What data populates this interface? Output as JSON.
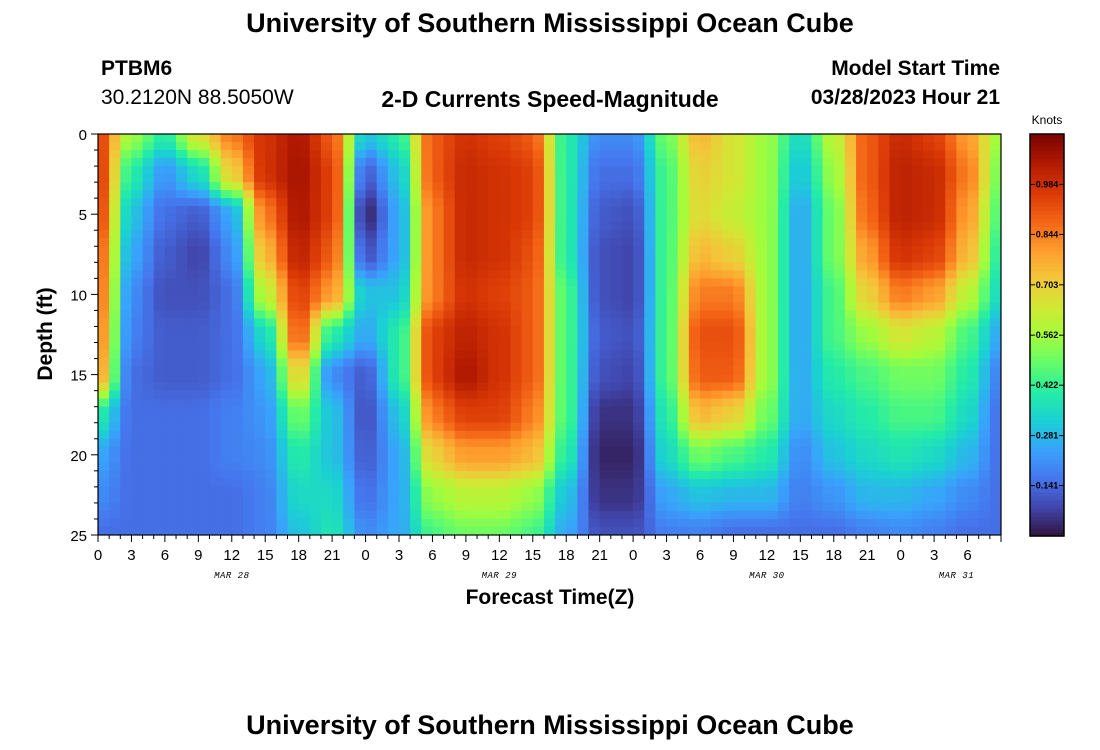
{
  "header": {
    "title_top": "University of Southern Mississippi Ocean Cube",
    "title_bottom": "University of Southern Mississippi Ocean Cube",
    "station_id": "PTBM6",
    "station_coords": "30.2120N  88.5050W",
    "plot_title": "2-D Currents Speed-Magnitude",
    "model_start_label": "Model Start Time",
    "model_start_value": "03/28/2023 Hour 21"
  },
  "colors": {
    "colormap": [
      "#30123b",
      "#4145ab",
      "#4675ed",
      "#39a2fc",
      "#1bcfd4",
      "#24eca6",
      "#61fc6c",
      "#a4fc3b",
      "#d1e834",
      "#f3c63a",
      "#fe9b2d",
      "#f36315",
      "#d93806",
      "#b11901",
      "#7a0402"
    ]
  },
  "chart_data": {
    "type": "heatmap",
    "title": "2-D Currents Speed-Magnitude",
    "xlabel": "Forecast Time(Z)",
    "ylabel": "Depth (ft)",
    "units": "Knots",
    "x_hours_range": [
      0,
      81
    ],
    "ylim": [
      0,
      25
    ],
    "yticks": [
      "0",
      "5",
      "10",
      "15",
      "20",
      "25"
    ],
    "xticks": [
      "0",
      "3",
      "6",
      "9",
      "12",
      "15",
      "18",
      "21",
      "0",
      "3",
      "6",
      "9",
      "12",
      "15",
      "18",
      "21",
      "0",
      "3",
      "6",
      "9",
      "12",
      "15",
      "18",
      "21",
      "0",
      "3",
      "6"
    ],
    "date_labels": [
      {
        "label": "MAR 28",
        "hour": 12
      },
      {
        "label": "MAR 29",
        "hour": 36
      },
      {
        "label": "MAR 30",
        "hour": 60
      },
      {
        "label": "MAR 31",
        "hour": 77
      }
    ],
    "colorbar_range": [
      0,
      1.125
    ],
    "colorbar_ticks": [
      "0.141",
      "0.281",
      "0.422",
      "0.562",
      "0.703",
      "0.844",
      "0.984"
    ],
    "colorbar_tick_values": [
      0.141,
      0.281,
      0.422,
      0.562,
      0.703,
      0.844,
      0.984
    ],
    "hour_columns": [
      0,
      3,
      6,
      9,
      12,
      15,
      18,
      21,
      24,
      27,
      30,
      33,
      36,
      39,
      42,
      45,
      48,
      51,
      54,
      57,
      60,
      63,
      66,
      69,
      72,
      75,
      78,
      81
    ],
    "depth_rows": [
      0,
      2.5,
      5,
      7.5,
      10,
      12.5,
      15,
      17.5,
      20,
      22.5,
      25
    ],
    "speed_knots": [
      [
        0.95,
        0.55,
        0.4,
        0.65,
        0.85,
        0.98,
        1.05,
        0.9,
        0.3,
        0.4,
        0.9,
        0.98,
        0.95,
        0.9,
        0.4,
        0.2,
        0.2,
        0.5,
        0.75,
        0.65,
        0.55,
        0.35,
        0.6,
        0.9,
        1.0,
        0.95,
        0.8,
        0.55
      ],
      [
        0.97,
        0.4,
        0.22,
        0.35,
        0.7,
        0.98,
        1.06,
        0.95,
        0.12,
        0.3,
        0.9,
        1.0,
        0.98,
        0.95,
        0.4,
        0.15,
        0.15,
        0.45,
        0.7,
        0.65,
        0.55,
        0.3,
        0.55,
        0.9,
        1.02,
        1.0,
        0.85,
        0.5
      ],
      [
        0.95,
        0.3,
        0.15,
        0.12,
        0.25,
        0.85,
        1.05,
        0.95,
        0.03,
        0.25,
        0.85,
        1.0,
        0.98,
        0.95,
        0.4,
        0.12,
        0.1,
        0.45,
        0.68,
        0.62,
        0.55,
        0.25,
        0.5,
        0.88,
        1.02,
        1.0,
        0.8,
        0.45
      ],
      [
        0.9,
        0.25,
        0.12,
        0.08,
        0.2,
        0.75,
        1.02,
        0.9,
        0.1,
        0.25,
        0.85,
        1.0,
        0.98,
        0.92,
        0.4,
        0.1,
        0.08,
        0.45,
        0.75,
        0.7,
        0.55,
        0.25,
        0.5,
        0.8,
        0.98,
        0.95,
        0.75,
        0.4
      ],
      [
        0.88,
        0.2,
        0.1,
        0.1,
        0.15,
        0.6,
        0.95,
        0.8,
        0.3,
        0.3,
        0.85,
        0.98,
        0.95,
        0.9,
        0.45,
        0.1,
        0.08,
        0.45,
        0.85,
        0.85,
        0.55,
        0.25,
        0.45,
        0.7,
        0.85,
        0.8,
        0.6,
        0.35
      ],
      [
        0.85,
        0.18,
        0.12,
        0.12,
        0.15,
        0.35,
        0.9,
        0.4,
        0.25,
        0.4,
        0.95,
        1.02,
        0.98,
        0.9,
        0.45,
        0.12,
        0.1,
        0.45,
        0.92,
        0.92,
        0.55,
        0.25,
        0.45,
        0.55,
        0.65,
        0.6,
        0.45,
        0.25
      ],
      [
        0.8,
        0.15,
        0.12,
        0.12,
        0.15,
        0.25,
        0.7,
        0.2,
        0.12,
        0.4,
        0.95,
        1.05,
        0.98,
        0.9,
        0.45,
        0.1,
        0.08,
        0.45,
        0.9,
        0.9,
        0.55,
        0.25,
        0.4,
        0.45,
        0.5,
        0.5,
        0.4,
        0.18
      ],
      [
        0.4,
        0.15,
        0.15,
        0.15,
        0.18,
        0.22,
        0.5,
        0.3,
        0.1,
        0.3,
        0.85,
        0.95,
        0.95,
        0.85,
        0.45,
        0.05,
        0.05,
        0.4,
        0.75,
        0.7,
        0.5,
        0.25,
        0.35,
        0.4,
        0.45,
        0.45,
        0.35,
        0.15
      ],
      [
        0.25,
        0.15,
        0.15,
        0.15,
        0.18,
        0.2,
        0.4,
        0.3,
        0.12,
        0.25,
        0.7,
        0.8,
        0.8,
        0.75,
        0.4,
        0.03,
        0.03,
        0.35,
        0.5,
        0.45,
        0.4,
        0.2,
        0.3,
        0.35,
        0.38,
        0.35,
        0.28,
        0.15
      ],
      [
        0.2,
        0.15,
        0.15,
        0.15,
        0.15,
        0.18,
        0.35,
        0.35,
        0.15,
        0.25,
        0.55,
        0.6,
        0.6,
        0.55,
        0.3,
        0.05,
        0.05,
        0.25,
        0.3,
        0.28,
        0.28,
        0.18,
        0.22,
        0.28,
        0.28,
        0.25,
        0.2,
        0.15
      ],
      [
        0.15,
        0.15,
        0.15,
        0.15,
        0.15,
        0.18,
        0.3,
        0.38,
        0.2,
        0.25,
        0.45,
        0.5,
        0.5,
        0.45,
        0.25,
        0.1,
        0.1,
        0.18,
        0.18,
        0.15,
        0.15,
        0.15,
        0.15,
        0.18,
        0.2,
        0.18,
        0.15,
        0.15
      ]
    ]
  }
}
